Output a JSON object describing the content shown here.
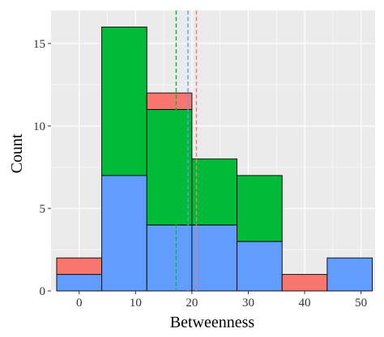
{
  "chart_data": {
    "type": "bar",
    "xlabel": "Betweenness",
    "ylabel": "Count",
    "xlim": [
      -5,
      52.5
    ],
    "ylim": [
      0,
      17
    ],
    "x_ticks": [
      0,
      10,
      20,
      30,
      40,
      50
    ],
    "y_ticks": [
      0,
      5,
      10,
      15
    ],
    "grid": true,
    "panel_background": "#ebebeb",
    "bin_edges": [
      -4,
      4,
      12,
      20,
      28,
      36,
      44,
      52
    ],
    "stack_order_bottom_to_top": [
      "blue",
      "green",
      "red"
    ],
    "series": [
      {
        "color": "#619cff",
        "values": [
          1,
          7,
          4,
          4,
          3,
          0,
          2
        ]
      },
      {
        "color": "#00ba38",
        "values": [
          0,
          9,
          7,
          4,
          4,
          0,
          0
        ]
      },
      {
        "color": "#f8766d",
        "values": [
          1,
          0,
          1,
          0,
          0,
          1,
          0
        ]
      }
    ],
    "mean_lines": [
      {
        "color": "#00ba38",
        "x": 17.2
      },
      {
        "color": "#619cff",
        "x": 19.3
      },
      {
        "color": "#f8766d",
        "x": 20.8
      }
    ]
  }
}
